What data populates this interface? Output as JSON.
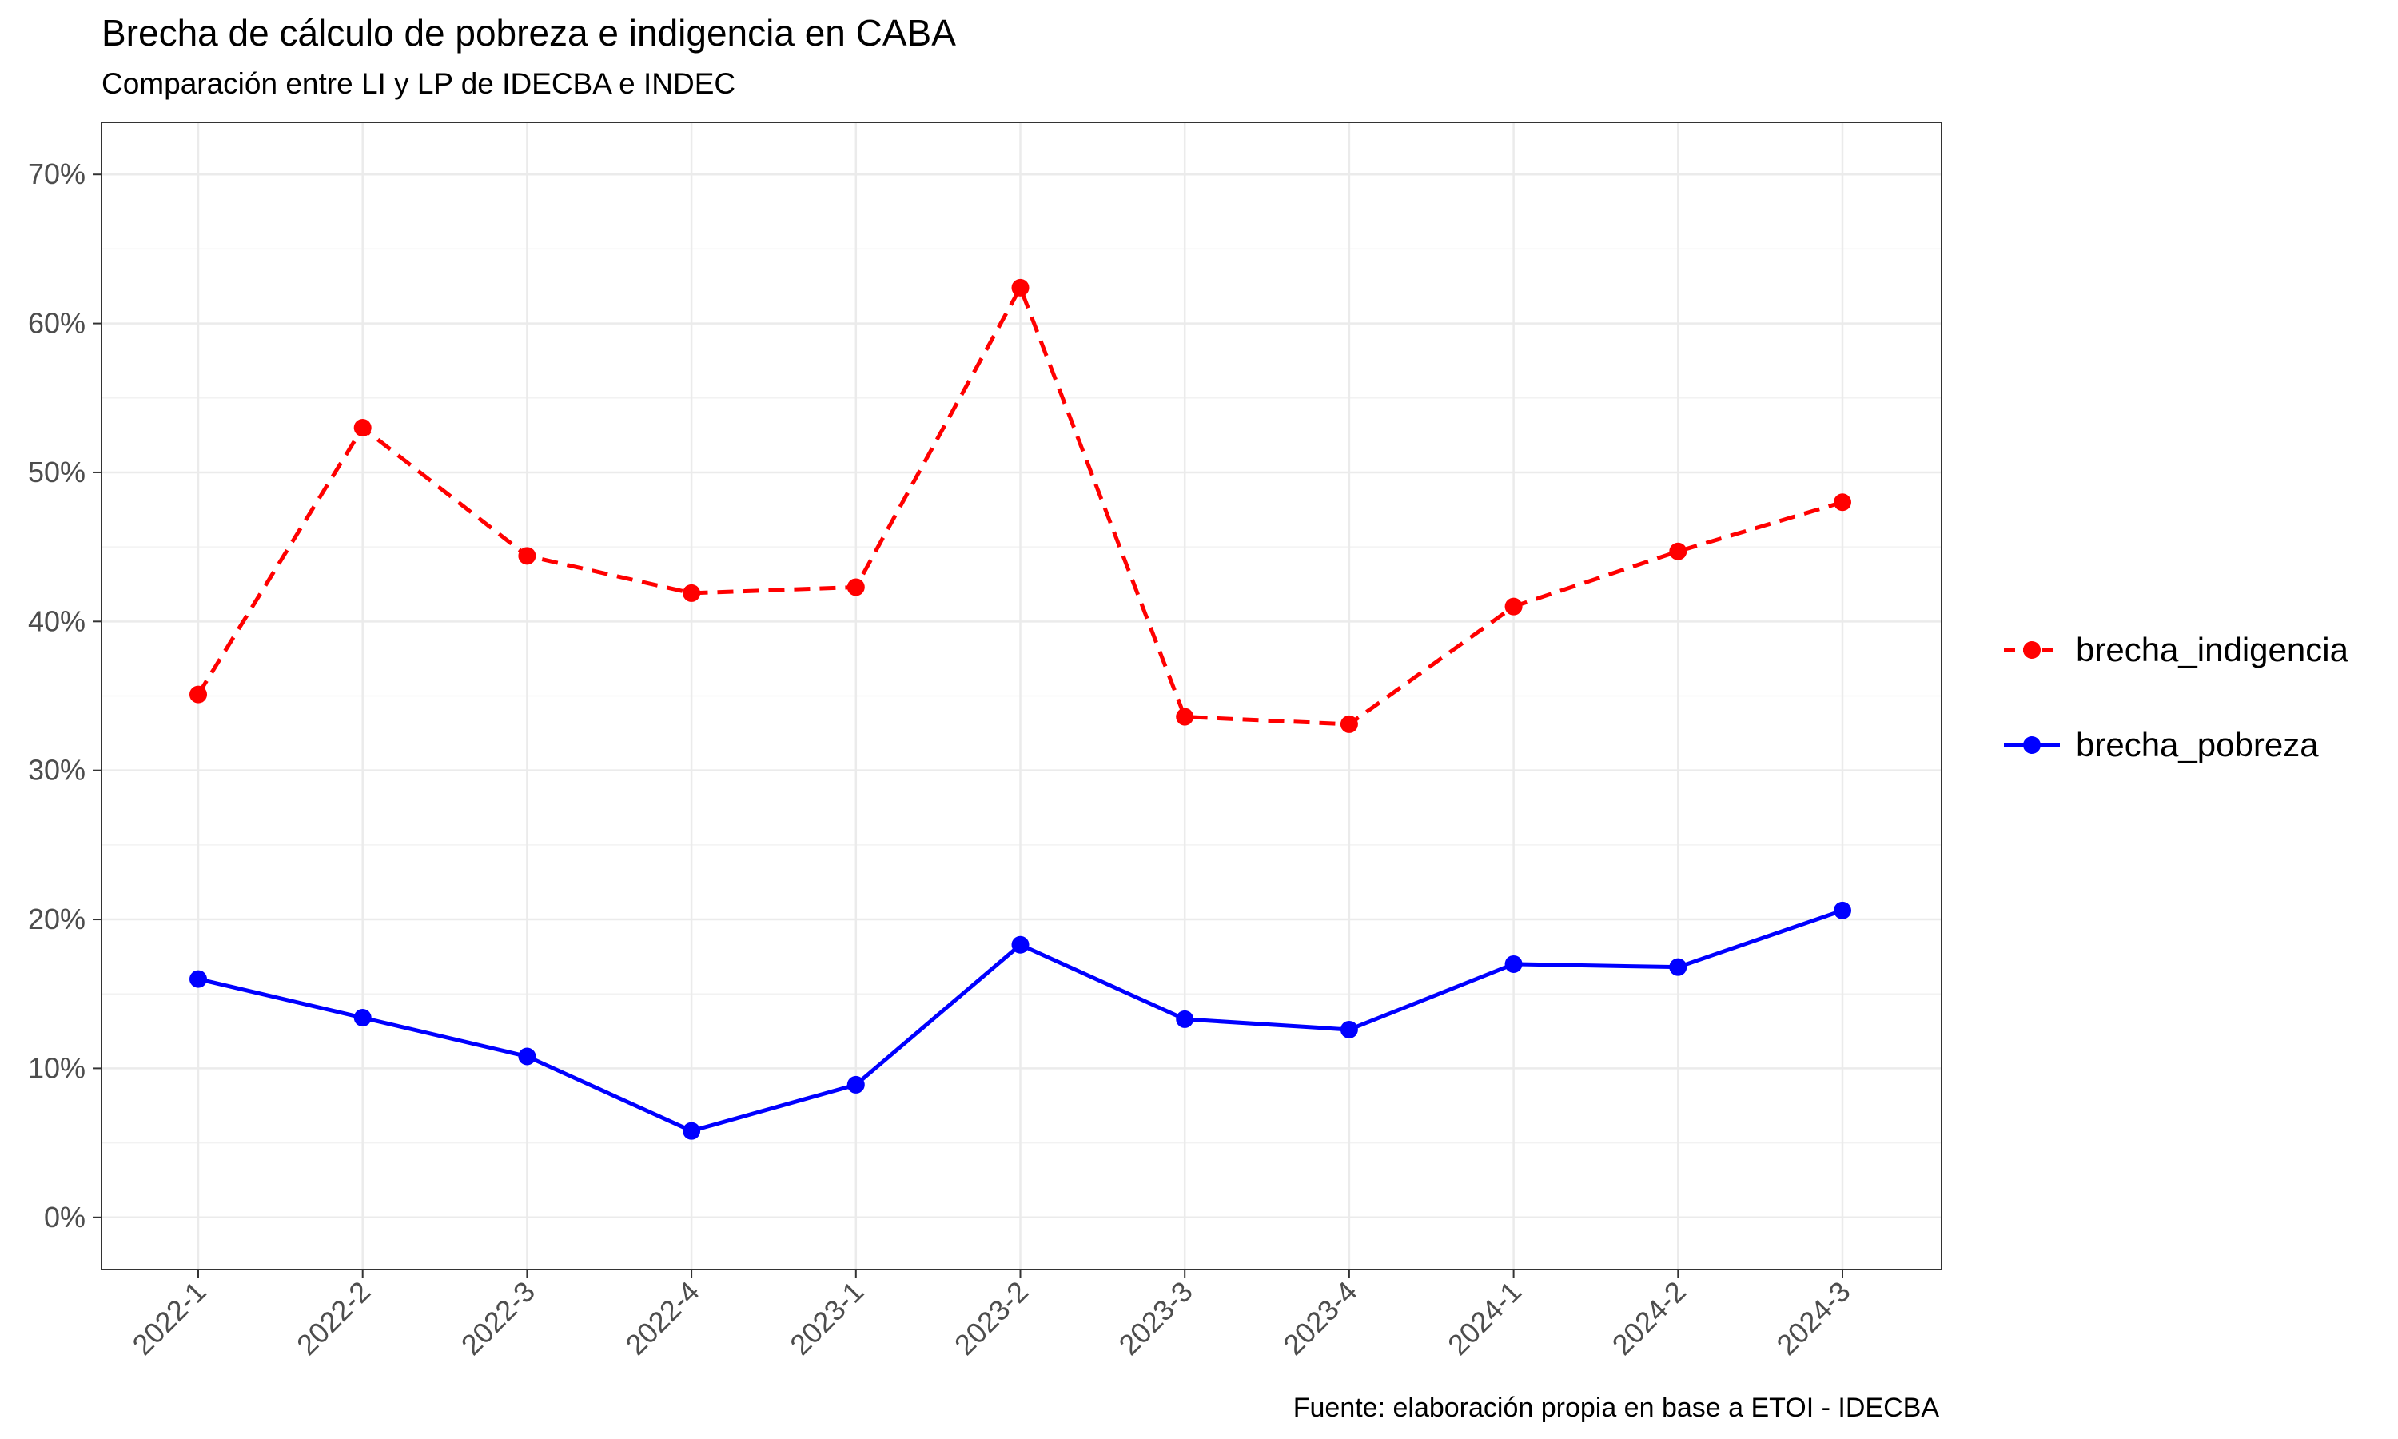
{
  "chart_data": {
    "type": "line",
    "title": "Brecha de cálculo de pobreza e indigencia en CABA",
    "subtitle": "Comparación entre LI y LP de IDECBA e INDEC",
    "caption": "Fuente: elaboración propia en base a ETOI - IDECBA",
    "xlabel": "",
    "ylabel": "",
    "categories": [
      "2022-1",
      "2022-2",
      "2022-3",
      "2022-4",
      "2023-1",
      "2023-2",
      "2023-3",
      "2023-4",
      "2024-1",
      "2024-2",
      "2024-3"
    ],
    "y_ticks": [
      0,
      10,
      20,
      30,
      40,
      50,
      60,
      70
    ],
    "y_tick_labels": [
      "0%",
      "10%",
      "20%",
      "30%",
      "40%",
      "50%",
      "60%",
      "70%"
    ],
    "ylim": [
      -3.5,
      73.5
    ],
    "grid": true,
    "legend_position": "right",
    "series": [
      {
        "name": "brecha_indigencia",
        "color": "#FF0000",
        "line_style": "dashed",
        "values": [
          35.1,
          53.0,
          44.4,
          41.9,
          42.3,
          62.4,
          33.6,
          33.1,
          41.0,
          44.7,
          48.0
        ]
      },
      {
        "name": "brecha_pobreza",
        "color": "#0000FF",
        "line_style": "solid",
        "values": [
          16.0,
          13.4,
          10.8,
          5.8,
          8.9,
          18.3,
          13.3,
          12.6,
          17.0,
          16.8,
          20.6
        ]
      }
    ]
  }
}
